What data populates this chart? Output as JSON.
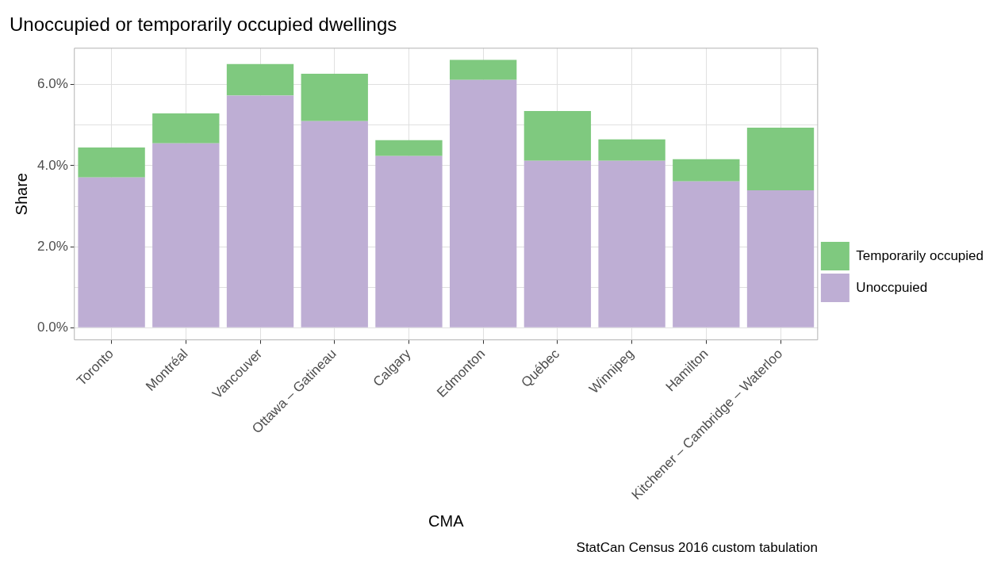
{
  "chart_data": {
    "type": "bar",
    "title": "Unoccupied or temporarily occupied dwellings",
    "xlabel": "CMA",
    "ylabel": "Share",
    "categories": [
      "Toronto",
      "Montréal",
      "Vancouver",
      "Ottawa – Gatineau",
      "Calgary",
      "Edmonton",
      "Québec",
      "Winnipeg",
      "Hamilton",
      "Kitchener – Cambridge – Waterloo"
    ],
    "series": [
      {
        "name": "Unoccpuied",
        "color": "#beaed4",
        "values": [
          3.71,
          4.55,
          5.73,
          5.1,
          4.24,
          6.12,
          4.12,
          4.12,
          3.61,
          3.39
        ]
      },
      {
        "name": "Temporarily occupied",
        "color": "#7fc97f",
        "values": [
          0.74,
          0.74,
          0.78,
          1.17,
          0.39,
          0.49,
          1.23,
          0.53,
          0.55,
          1.55
        ]
      }
    ],
    "stacked": true,
    "ylim": [
      -0.3,
      6.9
    ],
    "yticks": [
      {
        "value": 0,
        "label": "0.0%"
      },
      {
        "value": 1,
        "label": null
      },
      {
        "value": 2,
        "label": "2.0%"
      },
      {
        "value": 3,
        "label": null
      },
      {
        "value": 4,
        "label": "4.0%"
      },
      {
        "value": 5,
        "label": null
      },
      {
        "value": 6,
        "label": "6.0%"
      }
    ],
    "grid": true,
    "legend": "right",
    "annotations": [
      "StatCan Census 2016 custom tabulation"
    ]
  }
}
